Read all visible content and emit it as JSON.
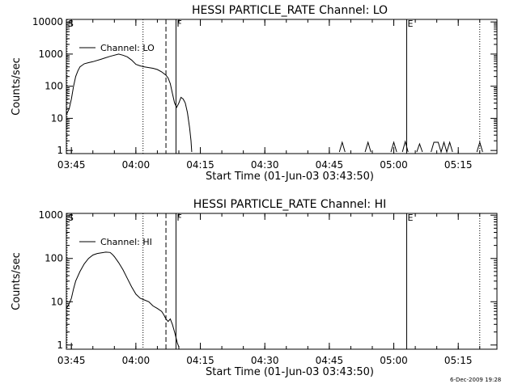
{
  "footer": {
    "timestamp": "6-Dec-2009 19:28"
  },
  "chart_data": [
    {
      "type": "line",
      "title": "HESSI PARTICLE_RATE Channel: LO",
      "xlabel": "Start Time (01-Jun-03 03:43:50)",
      "ylabel": "Counts/sec",
      "y_scale": "log",
      "ylim": [
        0.8,
        12000
      ],
      "xlim": [
        "03:43:50",
        "05:24:00"
      ],
      "x_ticks": [
        "03:45",
        "04:00",
        "04:15",
        "04:30",
        "04:45",
        "05:00",
        "05:15"
      ],
      "y_ticks": [
        "1",
        "10",
        "100",
        "1000",
        "10000"
      ],
      "grid": false,
      "legend": {
        "position": "upper-left",
        "entries": [
          "Channel: LO"
        ]
      },
      "markers": [
        {
          "time": "03:44:00",
          "label": "S",
          "style": "dotted"
        },
        {
          "time": "04:01:40",
          "label": "",
          "style": "dotted"
        },
        {
          "time": "04:07:00",
          "label": "",
          "style": "dashed"
        },
        {
          "time": "04:09:20",
          "label": "F",
          "style": "solid"
        },
        {
          "time": "05:03:00",
          "label": "E",
          "style": "solid"
        },
        {
          "time": "05:20:00",
          "label": "",
          "style": "dotted"
        }
      ],
      "series": [
        {
          "name": "Channel: LO",
          "segments": [
            {
              "x": [
                "03:43:50",
                "03:44:30",
                "03:45:00",
                "03:45:30",
                "03:46:00",
                "03:46:30",
                "03:47:00",
                "03:48:00",
                "03:49:00",
                "03:50:00",
                "03:52:00",
                "03:54:00",
                "03:56:00",
                "03:57:00",
                "03:58:00",
                "03:59:00",
                "04:00:00",
                "04:01:00",
                "04:02:00",
                "04:03:00",
                "04:04:00",
                "04:05:00",
                "04:06:00",
                "04:07:00",
                "04:07:30",
                "04:08:00",
                "04:08:30",
                "04:09:00",
                "04:09:30",
                "04:10:00",
                "04:10:30",
                "04:11:00",
                "04:11:30",
                "04:12:00",
                "04:12:30",
                "04:12:50",
                "04:13:00"
              ],
              "y": [
                13,
                20,
                40,
                100,
                200,
                300,
                400,
                500,
                540,
                580,
                700,
                850,
                1000,
                920,
                820,
                650,
                480,
                430,
                400,
                380,
                360,
                330,
                280,
                220,
                180,
                120,
                60,
                30,
                22,
                30,
                45,
                40,
                30,
                15,
                5,
                2,
                0.9
              ]
            },
            {
              "x": [
                "04:47:20",
                "04:48:00",
                "04:48:40"
              ],
              "y": [
                0.9,
                1.8,
                0.9
              ]
            },
            {
              "x": [
                "04:53:20",
                "04:54:00",
                "04:54:40"
              ],
              "y": [
                0.9,
                1.8,
                0.9
              ]
            },
            {
              "x": [
                "04:59:20",
                "05:00:00",
                "05:00:40"
              ],
              "y": [
                0.9,
                1.8,
                0.9
              ]
            },
            {
              "x": [
                "05:02:00",
                "05:02:40",
                "05:03:20"
              ],
              "y": [
                0.9,
                1.9,
                0.9
              ]
            },
            {
              "x": [
                "05:05:20",
                "05:06:00",
                "05:06:40"
              ],
              "y": [
                0.9,
                1.6,
                0.9
              ]
            },
            {
              "x": [
                "05:08:40",
                "05:09:20",
                "05:10:20",
                "05:11:00",
                "05:11:40",
                "05:12:20",
                "05:13:00",
                "05:13:40"
              ],
              "y": [
                0.9,
                1.8,
                1.8,
                0.9,
                1.8,
                0.9,
                1.8,
                0.9
              ]
            },
            {
              "x": [
                "05:19:20",
                "05:20:00",
                "05:20:40"
              ],
              "y": [
                0.9,
                1.8,
                0.9
              ]
            }
          ]
        }
      ]
    },
    {
      "type": "line",
      "title": "HESSI PARTICLE_RATE Channel: HI",
      "xlabel": "Start Time (01-Jun-03 03:43:50)",
      "ylabel": "Counts/sec",
      "y_scale": "log",
      "ylim": [
        0.8,
        1100
      ],
      "xlim": [
        "03:43:50",
        "05:24:00"
      ],
      "x_ticks": [
        "03:45",
        "04:00",
        "04:15",
        "04:30",
        "04:45",
        "05:00",
        "05:15"
      ],
      "y_ticks": [
        "1",
        "10",
        "100",
        "1000"
      ],
      "grid": false,
      "legend": {
        "position": "upper-left",
        "entries": [
          "Channel: HI"
        ]
      },
      "markers": [
        {
          "time": "03:44:00",
          "label": "S",
          "style": "dotted"
        },
        {
          "time": "04:01:40",
          "label": "",
          "style": "dotted"
        },
        {
          "time": "04:07:00",
          "label": "",
          "style": "dashed"
        },
        {
          "time": "04:09:20",
          "label": "F",
          "style": "solid"
        },
        {
          "time": "05:03:00",
          "label": "E",
          "style": "solid"
        },
        {
          "time": "05:20:00",
          "label": "",
          "style": "dotted"
        }
      ],
      "series": [
        {
          "name": "Channel: HI",
          "segments": [
            {
              "x": [
                "03:43:50",
                "03:44:30",
                "03:45:00",
                "03:45:30",
                "03:46:00",
                "03:47:00",
                "03:48:00",
                "03:49:00",
                "03:50:00",
                "03:51:00",
                "03:52:00",
                "03:53:00",
                "03:54:00",
                "03:54:30",
                "03:55:00",
                "03:56:00",
                "03:57:00",
                "03:58:00",
                "03:59:00",
                "04:00:00",
                "04:01:00",
                "04:02:00",
                "04:03:00",
                "04:04:00",
                "04:05:00",
                "04:06:00",
                "04:06:30",
                "04:07:00",
                "04:07:30",
                "04:08:00",
                "04:08:30",
                "04:09:00",
                "04:09:20",
                "04:09:40",
                "04:10:00"
              ],
              "y": [
                7,
                9,
                12,
                20,
                30,
                50,
                75,
                100,
                120,
                130,
                135,
                140,
                138,
                125,
                110,
                80,
                55,
                35,
                22,
                15,
                12,
                11,
                10,
                8,
                7,
                6,
                5,
                4,
                3.5,
                4,
                3,
                2,
                1.5,
                1.1,
                0.9
              ]
            }
          ]
        }
      ]
    }
  ]
}
